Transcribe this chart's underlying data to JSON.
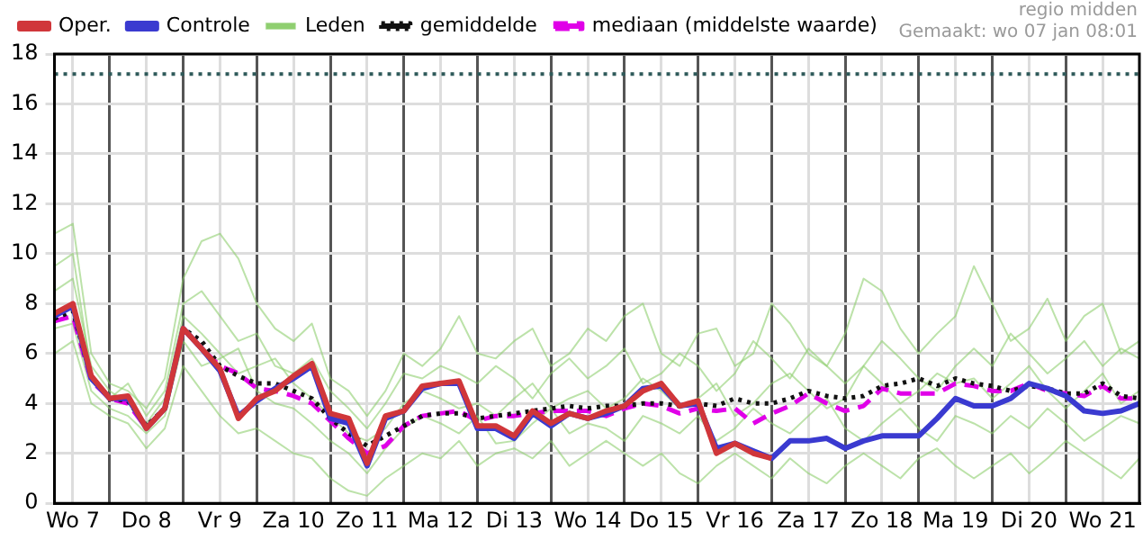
{
  "chart_data": {
    "type": "line",
    "annotations": [
      "regio midden",
      "Gemaakt: wo 07 jan 08:01"
    ],
    "x": [
      "--01-07T06:00",
      "--01-07T12:00",
      "--01-07T18:00",
      "--01-08T00:00",
      "--01-08T06:00",
      "--01-08T12:00",
      "--01-08T18:00",
      "--01-09T00:00",
      "--01-09T06:00",
      "--01-09T12:00",
      "--01-09T18:00",
      "--01-10T00:00",
      "--01-10T06:00",
      "--01-10T12:00",
      "--01-10T18:00",
      "--01-11T00:00",
      "--01-11T06:00",
      "--01-11T12:00",
      "--01-11T18:00",
      "--01-12T00:00",
      "--01-12T06:00",
      "--01-12T12:00",
      "--01-12T18:00",
      "--01-13T00:00",
      "--01-13T06:00",
      "--01-13T12:00",
      "--01-13T18:00",
      "--01-14T00:00",
      "--01-14T06:00",
      "--01-14T12:00",
      "--01-14T18:00",
      "--01-15T00:00",
      "--01-15T06:00",
      "--01-15T12:00",
      "--01-15T18:00",
      "--01-16T00:00",
      "--01-16T06:00",
      "--01-16T12:00",
      "--01-16T18:00",
      "--01-17T00:00",
      "--01-17T06:00",
      "--01-17T12:00",
      "--01-17T18:00",
      "--01-18T00:00",
      "--01-18T06:00",
      "--01-18T12:00",
      "--01-18T18:00",
      "--01-19T00:00",
      "--01-19T06:00",
      "--01-19T12:00",
      "--01-19T18:00",
      "--01-20T00:00",
      "--01-20T06:00",
      "--01-20T12:00",
      "--01-20T18:00",
      "--01-21T00:00",
      "--01-21T06:00",
      "--01-21T12:00",
      "--01-21T18:00",
      "--01-22T00:00"
    ],
    "xlim": [
      "--01-07T06:00",
      "--01-22T00:00"
    ],
    "xticks": [
      {
        "value": "--01-07T12:00",
        "label": "Wo 7"
      },
      {
        "value": "--01-08T00:00",
        "label": null
      },
      {
        "value": "--01-08T12:00",
        "label": "Do 8"
      },
      {
        "value": "--01-09T00:00",
        "label": null
      },
      {
        "value": "--01-09T12:00",
        "label": "Vr 9"
      },
      {
        "value": "--01-10T00:00",
        "label": null
      },
      {
        "value": "--01-10T12:00",
        "label": "Za 10"
      },
      {
        "value": "--01-11T00:00",
        "label": null
      },
      {
        "value": "--01-11T12:00",
        "label": "Zo 11"
      },
      {
        "value": "--01-12T00:00",
        "label": null
      },
      {
        "value": "--01-12T12:00",
        "label": "Ma 12"
      },
      {
        "value": "--01-13T00:00",
        "label": null
      },
      {
        "value": "--01-13T12:00",
        "label": "Di 13"
      },
      {
        "value": "--01-14T00:00",
        "label": null
      },
      {
        "value": "--01-14T12:00",
        "label": "Wo 14"
      },
      {
        "value": "--01-15T00:00",
        "label": null
      },
      {
        "value": "--01-15T12:00",
        "label": "Do 15"
      },
      {
        "value": "--01-16T00:00",
        "label": null
      },
      {
        "value": "--01-16T12:00",
        "label": "Vr 16"
      },
      {
        "value": "--01-17T00:00",
        "label": null
      },
      {
        "value": "--01-17T12:00",
        "label": "Za 17"
      },
      {
        "value": "--01-18T00:00",
        "label": null
      },
      {
        "value": "--01-18T12:00",
        "label": "Zo 18"
      },
      {
        "value": "--01-19T00:00",
        "label": null
      },
      {
        "value": "--01-19T12:00",
        "label": "Ma 19"
      },
      {
        "value": "--01-20T00:00",
        "label": null
      },
      {
        "value": "--01-20T12:00",
        "label": "Di 20"
      },
      {
        "value": "--01-21T00:00",
        "label": null
      },
      {
        "value": "--01-21T12:00",
        "label": "Wo 21"
      }
    ],
    "ylim": [
      0,
      18
    ],
    "yticks": [
      0,
      2,
      4,
      6,
      8,
      10,
      12,
      14,
      16,
      18
    ],
    "grid": true,
    "legend": "top",
    "marker": "none",
    "ref_lines": [
      {
        "axis": "y",
        "value": 17.2,
        "color": "#2f5a5a",
        "line_style": "dotted"
      }
    ],
    "series": [
      {
        "name": "Oper.",
        "color": "#d0363a",
        "line_style": "solid",
        "x": [
          "--01-07T06:00",
          "--01-07T12:00",
          "--01-07T18:00",
          "--01-08T00:00",
          "--01-08T06:00",
          "--01-08T12:00",
          "--01-08T18:00",
          "--01-09T00:00",
          "--01-09T06:00",
          "--01-09T12:00",
          "--01-09T18:00",
          "--01-10T00:00",
          "--01-10T06:00",
          "--01-10T12:00",
          "--01-10T18:00",
          "--01-11T00:00",
          "--01-11T06:00",
          "--01-11T12:00",
          "--01-11T18:00",
          "--01-12T00:00",
          "--01-12T06:00",
          "--01-12T12:00",
          "--01-12T18:00",
          "--01-13T00:00",
          "--01-13T06:00",
          "--01-13T12:00",
          "--01-13T18:00",
          "--01-14T00:00",
          "--01-14T06:00",
          "--01-14T12:00",
          "--01-14T18:00",
          "--01-15T00:00",
          "--01-15T06:00",
          "--01-15T12:00",
          "--01-15T18:00",
          "--01-16T00:00",
          "--01-16T06:00",
          "--01-16T12:00",
          "--01-16T18:00",
          "--01-17T00:00"
        ],
        "values": [
          7.6,
          8.0,
          5.1,
          4.2,
          4.3,
          3.0,
          3.8,
          7.0,
          6.2,
          5.4,
          3.4,
          4.2,
          4.5,
          5.1,
          5.6,
          3.6,
          3.4,
          1.6,
          3.5,
          3.7,
          4.7,
          4.8,
          4.9,
          3.1,
          3.1,
          2.7,
          3.7,
          3.2,
          3.6,
          3.4,
          3.7,
          3.9,
          4.5,
          4.8,
          3.9,
          4.1,
          2.0,
          2.4,
          2.0,
          1.8
        ]
      },
      {
        "name": "Controle",
        "color": "#3a3ad0",
        "line_style": "solid",
        "values": [
          7.5,
          7.9,
          5.0,
          4.2,
          4.2,
          3.0,
          3.8,
          7.0,
          6.2,
          5.3,
          3.5,
          4.1,
          4.6,
          5.0,
          5.5,
          3.4,
          3.2,
          1.5,
          3.4,
          3.7,
          4.6,
          4.8,
          4.8,
          3.0,
          3.0,
          2.6,
          3.6,
          3.1,
          3.6,
          3.4,
          3.6,
          3.9,
          4.6,
          4.7,
          3.9,
          4.0,
          2.2,
          2.4,
          2.1,
          1.8,
          2.5,
          2.5,
          2.6,
          2.2,
          2.5,
          2.7,
          2.7,
          2.7,
          3.4,
          4.2,
          3.9,
          3.9,
          4.2,
          4.8,
          4.6,
          4.3,
          3.7,
          3.6,
          3.7,
          4.0
        ]
      },
      {
        "name": "Leden",
        "color": "#8fcf70",
        "line_style": "solid",
        "values": [
          10.8,
          11.2,
          6.0,
          4.8,
          4.5,
          3.8,
          5.0,
          9.0,
          10.5,
          10.8,
          9.8,
          8.0,
          7.0,
          6.5,
          7.2,
          5.0,
          4.5,
          3.5,
          4.5,
          6.0,
          5.5,
          6.2,
          7.5,
          6.0,
          5.8,
          6.5,
          7.0,
          5.5,
          6.0,
          7.0,
          6.5,
          7.5,
          8.0,
          6.0,
          5.5,
          6.8,
          7.0,
          5.5,
          6.0,
          8.0,
          7.2,
          6.0,
          5.5,
          6.8,
          9.0,
          8.5,
          7.0,
          6.0,
          6.8,
          7.5,
          9.5,
          8.0,
          6.5,
          7.0,
          8.2,
          6.5,
          7.5,
          8.0,
          6.0,
          6.5
        ]
      },
      {
        "color": "#8fcf70",
        "line_style": "solid",
        "values": [
          6.0,
          6.5,
          4.0,
          3.5,
          3.2,
          2.2,
          3.0,
          5.5,
          4.5,
          3.5,
          2.8,
          3.0,
          2.5,
          2.0,
          1.8,
          1.0,
          0.5,
          0.3,
          1.0,
          1.5,
          2.0,
          1.8,
          2.5,
          1.5,
          2.0,
          2.2,
          1.8,
          2.5,
          1.5,
          2.0,
          2.5,
          2.0,
          1.5,
          2.0,
          1.2,
          0.8,
          1.5,
          2.0,
          1.5,
          1.0,
          1.8,
          1.2,
          0.8,
          1.5,
          2.0,
          1.5,
          1.0,
          1.8,
          2.2,
          1.5,
          1.0,
          1.5,
          2.0,
          1.2,
          1.8,
          2.5,
          2.0,
          1.5,
          1.0,
          1.8
        ]
      },
      {
        "color": "#8fcf70",
        "line_style": "solid",
        "values": [
          8.5,
          9.0,
          5.5,
          4.5,
          4.0,
          3.2,
          4.2,
          7.5,
          6.8,
          6.0,
          5.2,
          5.5,
          5.8,
          4.8,
          4.2,
          3.5,
          2.8,
          2.5,
          3.0,
          4.0,
          4.5,
          4.2,
          3.8,
          4.0,
          3.5,
          4.2,
          4.8,
          3.8,
          4.2,
          4.5,
          3.8,
          4.2,
          5.0,
          4.5,
          3.8,
          4.2,
          4.8,
          3.5,
          4.0,
          4.8,
          5.2,
          4.5,
          3.8,
          4.2,
          5.5,
          4.8,
          4.0,
          4.5,
          5.2,
          4.8,
          5.0,
          4.2,
          4.8,
          5.5,
          4.5,
          3.8,
          4.5,
          5.2,
          4.0,
          4.5
        ]
      },
      {
        "color": "#8fcf70",
        "line_style": "solid",
        "values": [
          7.0,
          7.2,
          4.5,
          3.8,
          3.5,
          2.8,
          3.5,
          6.5,
          5.5,
          5.8,
          6.2,
          4.5,
          4.0,
          3.8,
          3.2,
          2.5,
          2.0,
          1.2,
          2.2,
          3.0,
          3.5,
          3.2,
          2.8,
          3.5,
          2.4,
          2.5,
          3.2,
          3.8,
          2.8,
          3.2,
          3.0,
          2.5,
          3.5,
          3.2,
          2.8,
          3.5,
          2.5,
          3.0,
          3.8,
          3.2,
          2.8,
          3.5,
          4.2,
          3.0,
          2.5,
          3.2,
          3.8,
          3.0,
          2.5,
          3.5,
          3.2,
          2.8,
          3.5,
          3.0,
          3.8,
          3.2,
          2.5,
          3.0,
          3.5,
          3.2
        ]
      },
      {
        "color": "#8fcf70",
        "line_style": "solid",
        "values": [
          9.5,
          10.0,
          5.2,
          4.2,
          4.8,
          3.5,
          4.5,
          8.0,
          8.5,
          7.5,
          6.5,
          6.8,
          5.5,
          5.2,
          5.8,
          4.5,
          3.8,
          3.0,
          4.0,
          5.2,
          5.0,
          5.5,
          5.2,
          4.8,
          5.5,
          5.0,
          4.2,
          5.2,
          5.8,
          5.0,
          5.5,
          6.2,
          4.8,
          5.2,
          6.0,
          5.5,
          4.5,
          5.2,
          6.5,
          5.8,
          5.0,
          6.2,
          5.5,
          4.8,
          5.5,
          6.5,
          5.8,
          5.0,
          4.5,
          5.5,
          6.2,
          5.5,
          6.8,
          6.0,
          5.2,
          5.8,
          6.5,
          5.5,
          6.2,
          5.8
        ]
      },
      {
        "name": "gemiddelde",
        "color": "#111111",
        "line_style": "dotted",
        "values": [
          7.4,
          7.7,
          5.0,
          4.2,
          4.1,
          3.1,
          3.8,
          7.0,
          6.5,
          5.5,
          5.1,
          4.8,
          4.8,
          4.5,
          4.2,
          3.4,
          2.8,
          2.3,
          2.7,
          3.1,
          3.5,
          3.6,
          3.6,
          3.4,
          3.5,
          3.6,
          3.7,
          3.8,
          3.9,
          3.8,
          3.9,
          3.9,
          4.0,
          4.0,
          3.9,
          4.0,
          3.9,
          4.2,
          4.0,
          4.0,
          4.2,
          4.5,
          4.3,
          4.2,
          4.3,
          4.7,
          4.8,
          5.0,
          4.7,
          5.0,
          4.8,
          4.7,
          4.5,
          4.7,
          4.6,
          4.4,
          4.4,
          4.8,
          4.3,
          4.2
        ]
      },
      {
        "name": "mediaan (middelste waarde)",
        "color": "#e000e8",
        "line_style": "dashed",
        "values": [
          7.3,
          7.5,
          4.9,
          4.2,
          4.0,
          3.0,
          3.8,
          7.0,
          6.2,
          5.5,
          5.2,
          4.6,
          4.5,
          4.3,
          4.0,
          3.3,
          2.6,
          2.0,
          2.3,
          3.1,
          3.5,
          3.6,
          3.7,
          3.3,
          3.5,
          3.5,
          3.6,
          3.7,
          3.7,
          3.7,
          3.5,
          3.8,
          4.0,
          3.9,
          3.6,
          3.8,
          3.7,
          3.8,
          3.2,
          3.6,
          3.9,
          4.4,
          4.0,
          3.7,
          3.9,
          4.6,
          4.4,
          4.4,
          4.4,
          4.8,
          4.7,
          4.5,
          4.5,
          4.8,
          4.5,
          4.4,
          4.3,
          4.7,
          4.2,
          4.2
        ]
      }
    ]
  }
}
